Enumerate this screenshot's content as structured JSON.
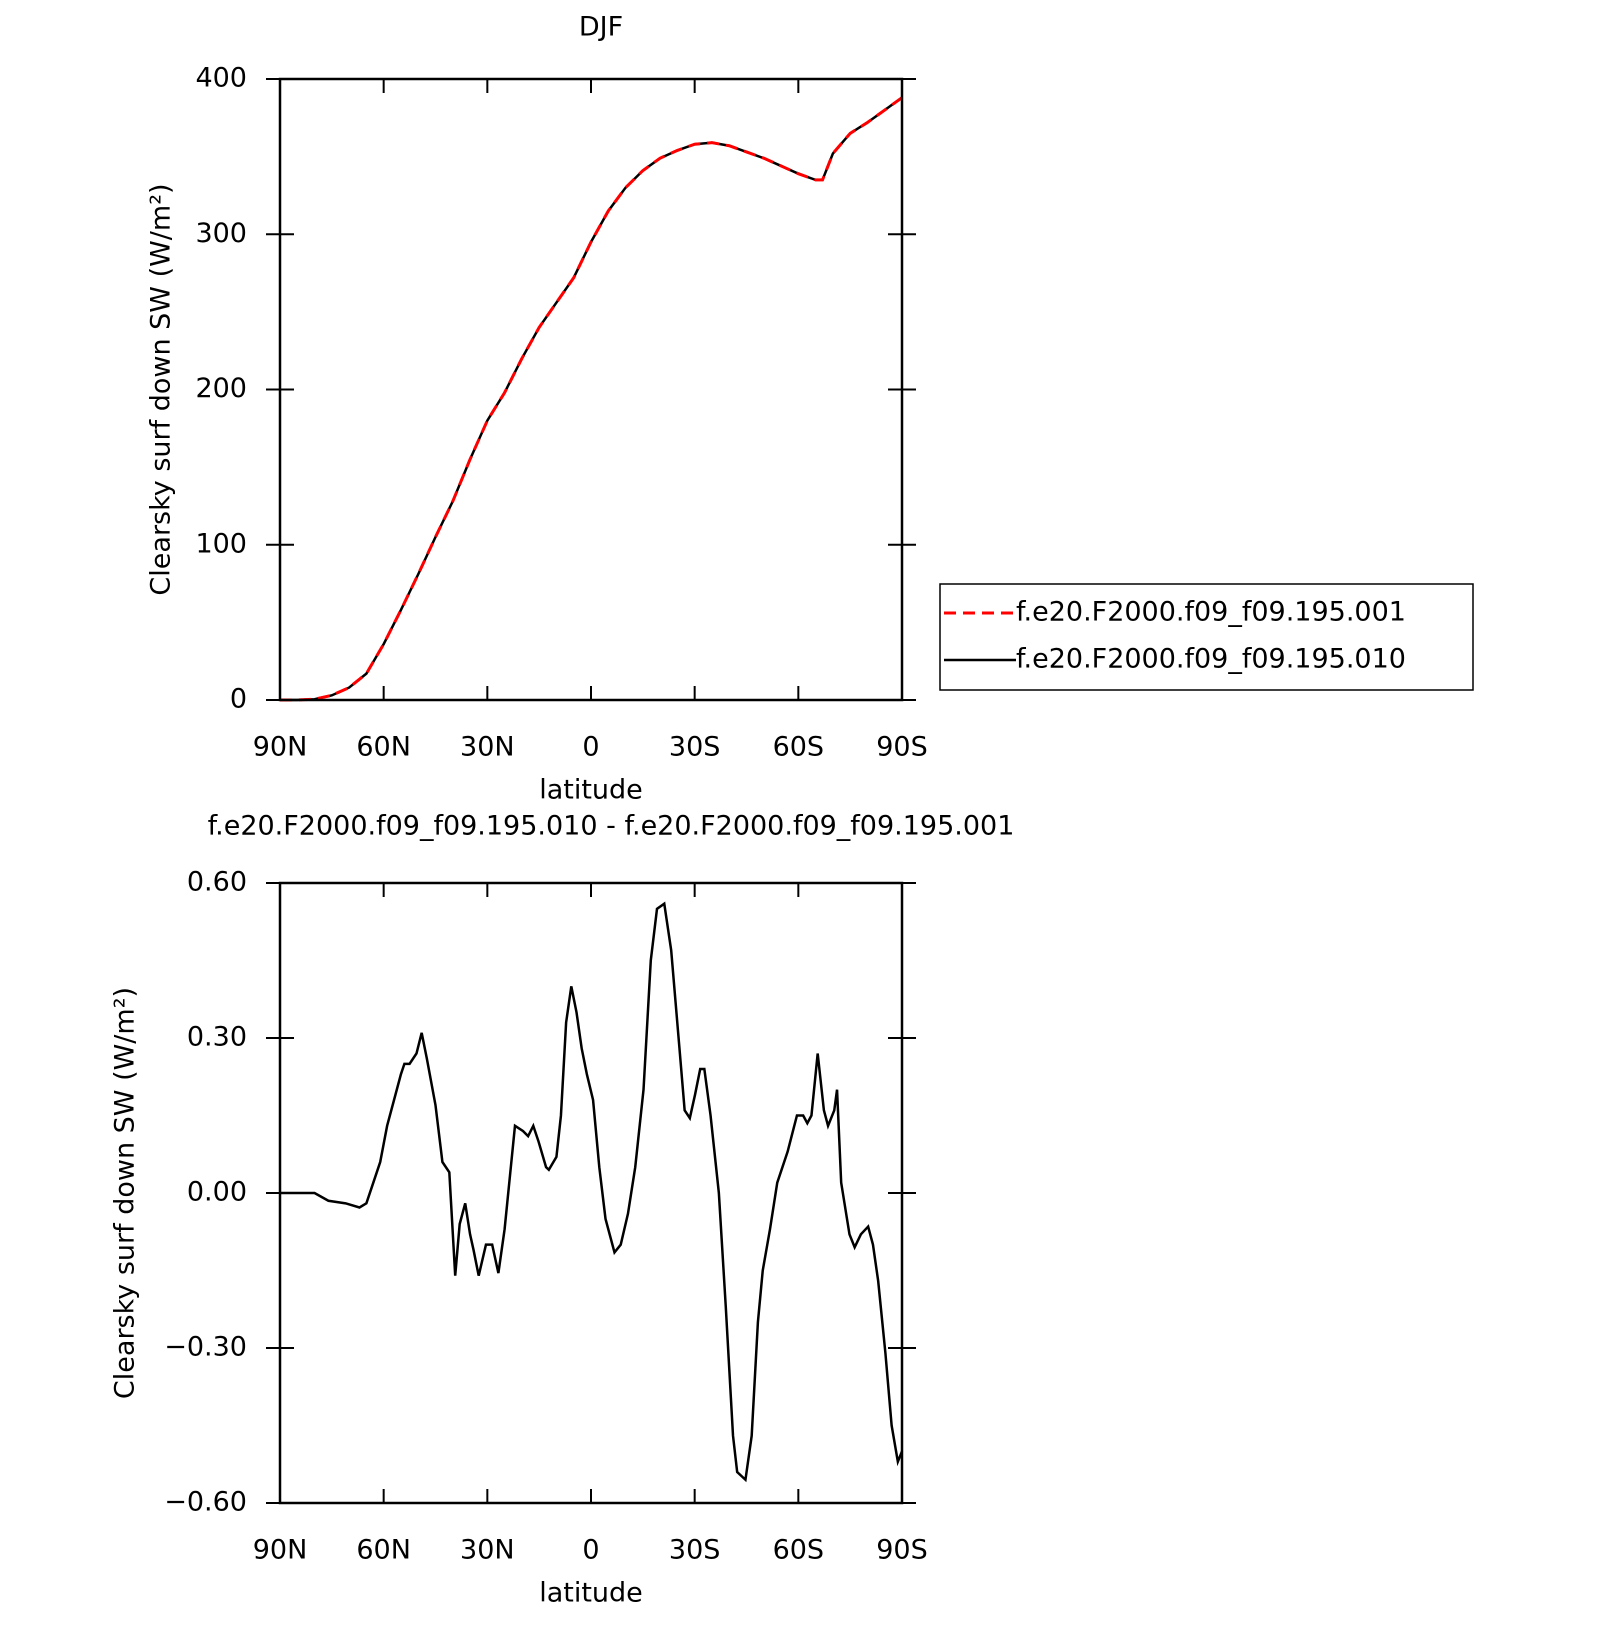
{
  "chart_data": [
    {
      "type": "line",
      "title": "DJF",
      "xlabel": "latitude",
      "ylabel": "Clearsky surf down SW (W/m²)",
      "x": [
        90,
        85,
        80,
        75,
        70,
        65,
        60,
        55,
        50,
        45,
        40,
        35,
        30,
        25,
        20,
        15,
        10,
        5,
        0,
        -5,
        -10,
        -15,
        -20,
        -25,
        -30,
        -35,
        -40,
        -45,
        -50,
        -55,
        -60,
        -65,
        -67,
        -70,
        -75,
        -80,
        -85,
        -90
      ],
      "series": [
        {
          "name": "f.e20.F2000.f09_f09.195.001",
          "color": "#ff0000",
          "dash": true,
          "values": [
            0,
            0,
            0.5,
            3,
            8,
            17,
            36,
            58,
            81,
            105,
            128,
            155,
            180,
            198,
            220,
            240,
            256,
            272,
            295,
            315,
            330,
            341,
            349,
            354,
            358,
            359,
            357,
            353,
            349,
            344,
            339,
            335,
            335,
            352,
            365,
            372,
            380,
            388
          ]
        },
        {
          "name": "f.e20.F2000.f09_f09.195.010",
          "color": "#000000",
          "dash": false,
          "values": [
            0,
            0,
            0.5,
            3,
            8,
            17,
            36,
            58,
            81,
            105,
            128,
            155,
            180,
            198,
            220,
            240,
            256,
            272,
            295,
            315,
            330,
            341,
            349,
            354,
            358,
            359,
            357,
            353,
            349,
            344,
            339,
            335,
            335,
            352,
            365,
            372,
            380,
            388
          ]
        }
      ],
      "xlim": [
        90,
        -90
      ],
      "xticks": [
        {
          "value": 90,
          "label": "90N"
        },
        {
          "value": 60,
          "label": "60N"
        },
        {
          "value": 30,
          "label": "30N"
        },
        0,
        {
          "value": -30,
          "label": "30S"
        },
        {
          "value": -60,
          "label": "60S"
        },
        {
          "value": -90,
          "label": "90S"
        }
      ],
      "ylim": [
        0,
        400
      ],
      "yticks": [
        0,
        100,
        200,
        300,
        400
      ],
      "legend": true
    },
    {
      "type": "line",
      "title": "f.e20.F2000.f09_f09.195.010 - f.e20.F2000.f09_f09.195.001",
      "xlabel": "latitude",
      "ylabel": "Clearsky surf down SW (W/m²)",
      "x": [
        90,
        80,
        76,
        71,
        67,
        65,
        63,
        61,
        59,
        57,
        55,
        54,
        52.5,
        50.5,
        49,
        47.5,
        45,
        43,
        41,
        39.3,
        38,
        36.4,
        35,
        34,
        32.5,
        30.4,
        28.6,
        26.8,
        25,
        22,
        19.7,
        18.2,
        16.7,
        15.2,
        13,
        12.2,
        10,
        8.7,
        7.2,
        5.7,
        4.2,
        2.7,
        1.2,
        -0.6,
        -2.4,
        -4.2,
        -6.8,
        -8.6,
        -10.7,
        -12.8,
        -15.2,
        -17.3,
        -19.1,
        -21.2,
        -23.2,
        -25.6,
        -27.1,
        -28.6,
        -30.1,
        -31.6,
        -32.8,
        -34.6,
        -37,
        -39,
        -41.1,
        -42.3,
        -44.7,
        -46.5,
        -48.3,
        -49.7,
        -51.8,
        -53.9,
        -56.9,
        -59.6,
        -61.4,
        -62.6,
        -63.8,
        -65.6,
        -67.4,
        -68.6,
        -70.4,
        -71.2,
        -72.4,
        -74.8,
        -76.3,
        -78.1,
        -80.2,
        -81.6,
        -83.1,
        -85.2,
        -87,
        -88.8,
        -90
      ],
      "series": [
        {
          "name": "f.e20.F2000.f09_f09.195.010 - f.e20.F2000.f09_f09.195.001",
          "color": "#000000",
          "dash": false,
          "values": [
            0,
            0,
            -0.015,
            -0.02,
            -0.028,
            -0.02,
            0.02,
            0.06,
            0.13,
            0.18,
            0.23,
            0.25,
            0.25,
            0.27,
            0.31,
            0.26,
            0.17,
            0.06,
            0.04,
            -0.16,
            -0.06,
            -0.02,
            -0.08,
            -0.11,
            -0.16,
            -0.1,
            -0.1,
            -0.155,
            -0.07,
            0.13,
            0.12,
            0.11,
            0.13,
            0.1,
            0.05,
            0.045,
            0.07,
            0.15,
            0.33,
            0.4,
            0.35,
            0.28,
            0.23,
            0.18,
            0.05,
            -0.05,
            -0.115,
            -0.1,
            -0.04,
            0.05,
            0.2,
            0.45,
            0.55,
            0.56,
            0.47,
            0.28,
            0.16,
            0.145,
            0.19,
            0.24,
            0.24,
            0.15,
            0,
            -0.22,
            -0.47,
            -0.54,
            -0.555,
            -0.47,
            -0.25,
            -0.15,
            -0.07,
            0.02,
            0.08,
            0.15,
            0.15,
            0.135,
            0.15,
            0.27,
            0.16,
            0.13,
            0.16,
            0.2,
            0.02,
            -0.08,
            -0.105,
            -0.08,
            -0.065,
            -0.1,
            -0.17,
            -0.31,
            -0.45,
            -0.52,
            -0.5
          ]
        }
      ],
      "xlim": [
        90,
        -90
      ],
      "xticks": [
        {
          "value": 90,
          "label": "90N"
        },
        {
          "value": 60,
          "label": "60N"
        },
        {
          "value": 30,
          "label": "30N"
        },
        0,
        {
          "value": -30,
          "label": "30S"
        },
        {
          "value": -60,
          "label": "60S"
        },
        {
          "value": -90,
          "label": "90S"
        }
      ],
      "ylim": [
        -0.6,
        0.6
      ],
      "yticks": [
        {
          "value": -0.6,
          "label": "−0.60"
        },
        {
          "value": -0.3,
          "label": "−0.30"
        },
        {
          "value": 0,
          "label": "0.00"
        },
        {
          "value": 0.3,
          "label": "0.30"
        },
        {
          "value": 0.6,
          "label": "0.60"
        }
      ],
      "legend": false
    }
  ]
}
